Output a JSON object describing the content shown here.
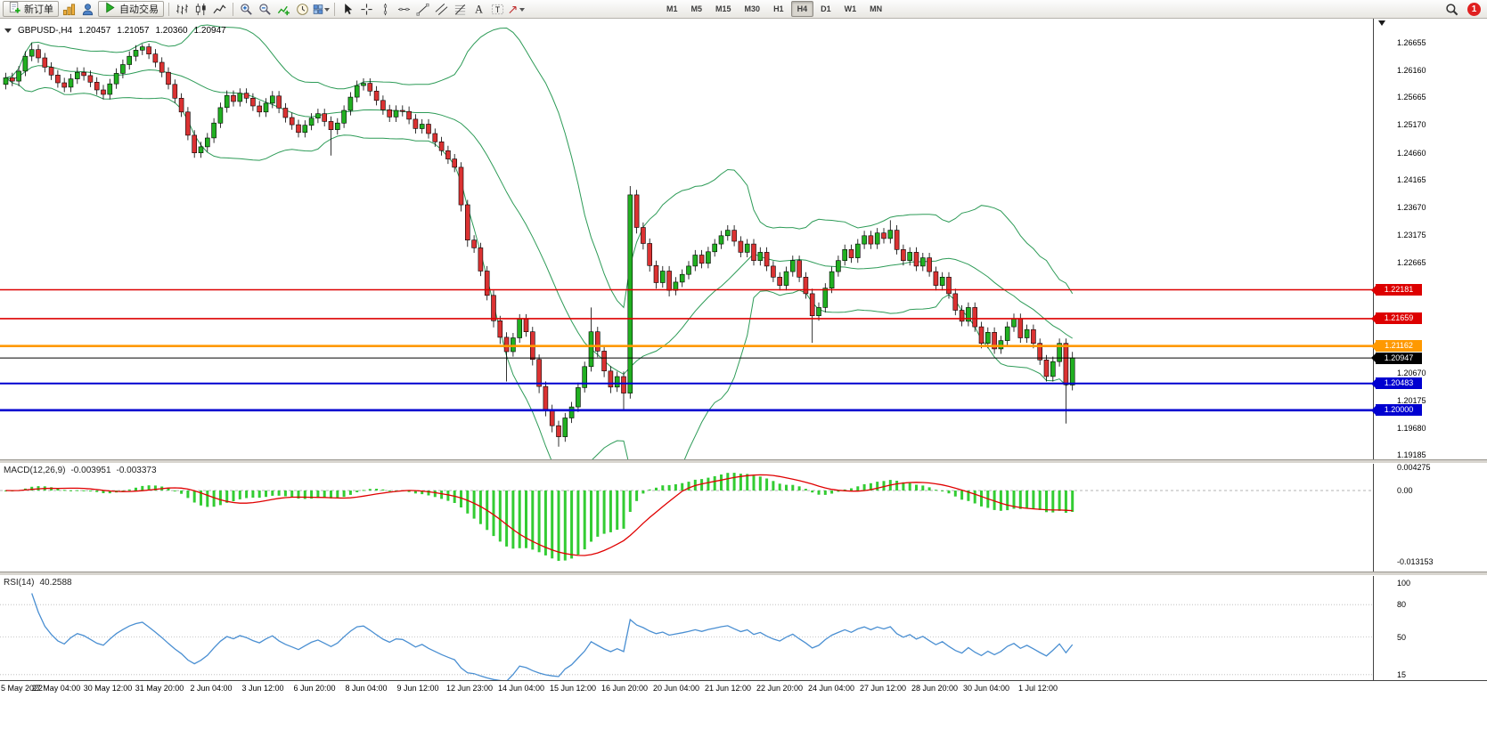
{
  "toolbar": {
    "new_order_label": "新订单",
    "autotrade_label": "自动交易",
    "timeframes": [
      "M1",
      "M5",
      "M15",
      "M30",
      "H1",
      "H4",
      "D1",
      "W1",
      "MN"
    ],
    "active_timeframe": "H4",
    "notification_count": "1",
    "icons": [
      "new-order-icon",
      "new-chart-icon",
      "profiles-icon",
      "autotrade-play-icon",
      "bar-chart-type-icon",
      "candlestick-chart-type-icon",
      "line-chart-type-icon",
      "zoom-in-icon",
      "zoom-out-icon",
      "indicators-icon",
      "periods-icon",
      "templates-icon",
      "dropdown-caret-icon",
      "cursor-icon",
      "crosshair-icon",
      "vertical-line-icon",
      "horizontal-line-icon",
      "trendline-icon",
      "channel-icon",
      "fibonacci-icon",
      "text-icon",
      "text-label-icon",
      "arrow-tool-icon",
      "search-icon",
      "notification-badge"
    ]
  },
  "quote": {
    "symbol_period": "GBPUSD-,H4",
    "open": "1.20457",
    "high": "1.21057",
    "low": "1.20360",
    "close": "1.20947"
  },
  "price_axis": {
    "ticks": [
      "1.26655",
      "1.26160",
      "1.25665",
      "1.25170",
      "1.24660",
      "1.24165",
      "1.23670",
      "1.23175",
      "1.22665",
      "1.20670",
      "1.20175",
      "1.19680",
      "1.19185"
    ],
    "badges": [
      {
        "label": "1.22181",
        "color": "#dd0000"
      },
      {
        "label": "1.21659",
        "color": "#dd0000"
      },
      {
        "label": "1.21162",
        "color": "#ff9900"
      },
      {
        "label": "1.20947",
        "color": "#000000"
      },
      {
        "label": "1.20483",
        "color": "#0000d0"
      },
      {
        "label": "1.20000",
        "color": "#0000d0"
      }
    ]
  },
  "time_axis": [
    "5 May 2022",
    "27 May 04:00",
    "30 May 12:00",
    "31 May 20:00",
    "2 Jun 04:00",
    "3 Jun 12:00",
    "6 Jun 20:00",
    "8 Jun 04:00",
    "9 Jun 12:00",
    "12 Jun 23:00",
    "14 Jun 04:00",
    "15 Jun 12:00",
    "16 Jun 20:00",
    "20 Jun 04:00",
    "21 Jun 12:00",
    "22 Jun 20:00",
    "24 Jun 04:00",
    "27 Jun 12:00",
    "28 Jun 20:00",
    "30 Jun 04:00",
    "1 Jul 12:00"
  ],
  "macd_panel": {
    "label": "MACD(12,26,9)",
    "value_main": "-0.003951",
    "value_signal": "-0.003373",
    "axis_top": "0.004275",
    "axis_zero": "0.00",
    "axis_bottom": "-0.013153"
  },
  "rsi_panel": {
    "label": "RSI(14)",
    "value": "40.2588",
    "axis": [
      "100",
      "80",
      "50",
      "15"
    ]
  },
  "chart_data": {
    "type": "candlestick",
    "symbol": "GBPUSD",
    "timeframe": "H4",
    "ylim": [
      1.1911,
      1.2709
    ],
    "colors": {
      "up": "#21b021",
      "down": "#db3232",
      "bollinger": "#2d9b57",
      "macd_hist": "#33cc33",
      "macd_signal": "#e00000",
      "rsi_line": "#4a8fd2"
    },
    "horizontal_lines": [
      {
        "price": 1.22181,
        "color": "#dd0000",
        "width": 1.6
      },
      {
        "price": 1.21659,
        "color": "#dd0000",
        "width": 1.6
      },
      {
        "price": 1.21162,
        "color": "#ff9900",
        "width": 2.6
      },
      {
        "price": 1.20947,
        "color": "#000000",
        "width": 1
      },
      {
        "price": 1.20483,
        "color": "#0000d0",
        "width": 2
      },
      {
        "price": 1.2,
        "color": "#0000d0",
        "width": 2.6
      }
    ],
    "indicators": [
      {
        "name": "Bollinger Bands",
        "period": 20,
        "deviation": 2
      },
      {
        "name": "MACD",
        "fast": 12,
        "slow": 26,
        "signal": 9,
        "current_main": -0.003951,
        "current_signal": -0.003373
      },
      {
        "name": "RSI",
        "period": 14,
        "current": 40.2588
      }
    ],
    "candles": [
      [
        1.259,
        1.2611,
        1.2581,
        1.2602
      ],
      [
        1.2602,
        1.2611,
        1.2587,
        1.2596
      ],
      [
        1.2596,
        1.2623,
        1.2587,
        1.2614
      ],
      [
        1.2614,
        1.265,
        1.2605,
        1.2641
      ],
      [
        1.2641,
        1.2665,
        1.2632,
        1.2653
      ],
      [
        1.2653,
        1.2662,
        1.2629,
        1.2638
      ],
      [
        1.2638,
        1.2647,
        1.2612,
        1.2621
      ],
      [
        1.2621,
        1.263,
        1.2598,
        1.2607
      ],
      [
        1.2607,
        1.2616,
        1.2584,
        1.2593
      ],
      [
        1.2593,
        1.2602,
        1.2576,
        1.2585
      ],
      [
        1.2585,
        1.2609,
        1.2576,
        1.26
      ],
      [
        1.26,
        1.2621,
        1.2591,
        1.2612
      ],
      [
        1.2612,
        1.2621,
        1.2597,
        1.2606
      ],
      [
        1.2606,
        1.2615,
        1.2585,
        1.2594
      ],
      [
        1.2594,
        1.2603,
        1.2571,
        1.258
      ],
      [
        1.258,
        1.2589,
        1.2563,
        1.2572
      ],
      [
        1.2572,
        1.26,
        1.2563,
        1.2591
      ],
      [
        1.2591,
        1.2619,
        1.2582,
        1.261
      ],
      [
        1.261,
        1.2635,
        1.2601,
        1.2626
      ],
      [
        1.2626,
        1.265,
        1.2617,
        1.2641
      ],
      [
        1.2641,
        1.2661,
        1.2632,
        1.2652
      ],
      [
        1.2652,
        1.2663,
        1.2643,
        1.2658
      ],
      [
        1.2658,
        1.2664,
        1.2636,
        1.2645
      ],
      [
        1.2645,
        1.2654,
        1.2621,
        1.263
      ],
      [
        1.263,
        1.2639,
        1.2603,
        1.2612
      ],
      [
        1.2612,
        1.2621,
        1.2581,
        1.259
      ],
      [
        1.259,
        1.2599,
        1.2556,
        1.2565
      ],
      [
        1.2565,
        1.2574,
        1.2531,
        1.254
      ],
      [
        1.254,
        1.2549,
        1.2489,
        1.2498
      ],
      [
        1.2498,
        1.2507,
        1.2457,
        1.2466
      ],
      [
        1.2466,
        1.2486,
        1.2457,
        1.2477
      ],
      [
        1.2477,
        1.2502,
        1.2468,
        1.2493
      ],
      [
        1.2493,
        1.2529,
        1.2484,
        1.252
      ],
      [
        1.252,
        1.2557,
        1.2511,
        1.2548
      ],
      [
        1.2548,
        1.2579,
        1.2539,
        1.257
      ],
      [
        1.257,
        1.2579,
        1.255,
        1.2559
      ],
      [
        1.2559,
        1.2583,
        1.255,
        1.2574
      ],
      [
        1.2574,
        1.2583,
        1.2556,
        1.2565
      ],
      [
        1.2565,
        1.2574,
        1.2542,
        1.2551
      ],
      [
        1.2551,
        1.256,
        1.2531,
        1.254
      ],
      [
        1.254,
        1.2565,
        1.2531,
        1.2556
      ],
      [
        1.2556,
        1.2578,
        1.2547,
        1.2569
      ],
      [
        1.2569,
        1.2578,
        1.2538,
        1.2547
      ],
      [
        1.2547,
        1.2556,
        1.2521,
        1.253
      ],
      [
        1.253,
        1.2539,
        1.2508,
        1.2517
      ],
      [
        1.2517,
        1.2526,
        1.2494,
        1.2503
      ],
      [
        1.2503,
        1.2525,
        1.2494,
        1.2516
      ],
      [
        1.2516,
        1.2538,
        1.2507,
        1.2529
      ],
      [
        1.2529,
        1.2546,
        1.252,
        1.2537
      ],
      [
        1.2537,
        1.2546,
        1.2514,
        1.2523
      ],
      [
        1.2523,
        1.2532,
        1.2461,
        1.2508
      ],
      [
        1.2508,
        1.2529,
        1.2499,
        1.252
      ],
      [
        1.252,
        1.2552,
        1.2511,
        1.2543
      ],
      [
        1.2543,
        1.2576,
        1.2534,
        1.2567
      ],
      [
        1.2567,
        1.2597,
        1.2558,
        1.2588
      ],
      [
        1.2588,
        1.2601,
        1.2579,
        1.2592
      ],
      [
        1.2592,
        1.2601,
        1.2569,
        1.2578
      ],
      [
        1.2578,
        1.2587,
        1.2552,
        1.2561
      ],
      [
        1.2561,
        1.257,
        1.2535,
        1.2544
      ],
      [
        1.2544,
        1.2553,
        1.2522,
        1.2531
      ],
      [
        1.2531,
        1.2552,
        1.2522,
        1.2543
      ],
      [
        1.2543,
        1.2552,
        1.2532,
        1.2541
      ],
      [
        1.2541,
        1.255,
        1.2518,
        1.2527
      ],
      [
        1.2527,
        1.2536,
        1.2501,
        1.251
      ],
      [
        1.251,
        1.2527,
        1.2501,
        1.2518
      ],
      [
        1.2518,
        1.2527,
        1.2492,
        1.2501
      ],
      [
        1.2501,
        1.251,
        1.2477,
        1.2486
      ],
      [
        1.2486,
        1.2495,
        1.2461,
        1.247
      ],
      [
        1.247,
        1.2479,
        1.2446,
        1.2455
      ],
      [
        1.2455,
        1.2464,
        1.2431,
        1.244
      ],
      [
        1.244,
        1.2449,
        1.236,
        1.2372
      ],
      [
        1.2372,
        1.2381,
        1.2296,
        1.2308
      ],
      [
        1.2308,
        1.2317,
        1.2285,
        1.2294
      ],
      [
        1.2294,
        1.2303,
        1.2243,
        1.2252
      ],
      [
        1.2252,
        1.2261,
        1.2199,
        1.2208
      ],
      [
        1.2208,
        1.2217,
        1.215,
        1.2162
      ],
      [
        1.2162,
        1.2171,
        1.212,
        1.2132
      ],
      [
        1.2132,
        1.2141,
        1.2052,
        1.2106
      ],
      [
        1.2106,
        1.214,
        1.2097,
        1.2131
      ],
      [
        1.2131,
        1.2174,
        1.2122,
        1.2165
      ],
      [
        1.2165,
        1.2174,
        1.2133,
        1.2142
      ],
      [
        1.2142,
        1.2151,
        1.2081,
        1.2092
      ],
      [
        1.2092,
        1.2101,
        1.2031,
        1.2043
      ],
      [
        1.2043,
        1.2052,
        1.1989,
        1.2001
      ],
      [
        1.2001,
        1.201,
        1.196,
        1.1972
      ],
      [
        1.1972,
        1.1981,
        1.1934,
        1.1952
      ],
      [
        1.1952,
        1.1995,
        1.1943,
        1.1986
      ],
      [
        1.1986,
        1.2015,
        1.1977,
        1.2006
      ],
      [
        1.2006,
        1.205,
        1.1997,
        1.2041
      ],
      [
        1.2041,
        1.2088,
        1.2032,
        1.2079
      ],
      [
        1.2079,
        1.2186,
        1.207,
        1.2142
      ],
      [
        1.2142,
        1.2151,
        1.2096,
        1.2107
      ],
      [
        1.2107,
        1.2116,
        1.206,
        1.2071
      ],
      [
        1.2071,
        1.208,
        1.2031,
        1.2042
      ],
      [
        1.2042,
        1.207,
        1.2033,
        1.2061
      ],
      [
        1.2061,
        1.207,
        1.2001,
        1.2031
      ],
      [
        1.2031,
        1.2406,
        1.2021,
        1.239
      ],
      [
        1.239,
        1.2399,
        1.232,
        1.2331
      ],
      [
        1.2331,
        1.234,
        1.2291,
        1.2302
      ],
      [
        1.2302,
        1.2311,
        1.2251,
        1.2262
      ],
      [
        1.2262,
        1.2271,
        1.222,
        1.2231
      ],
      [
        1.2231,
        1.2261,
        1.2222,
        1.2252
      ],
      [
        1.2252,
        1.2261,
        1.2206,
        1.2217
      ],
      [
        1.2217,
        1.2241,
        1.2208,
        1.2232
      ],
      [
        1.2232,
        1.2255,
        1.2223,
        1.2246
      ],
      [
        1.2246,
        1.227,
        1.2237,
        1.2261
      ],
      [
        1.2261,
        1.229,
        1.2252,
        1.2281
      ],
      [
        1.2281,
        1.229,
        1.2257,
        1.2266
      ],
      [
        1.2266,
        1.2296,
        1.2257,
        1.2287
      ],
      [
        1.2287,
        1.231,
        1.2278,
        1.2301
      ],
      [
        1.2301,
        1.2325,
        1.2292,
        1.2316
      ],
      [
        1.2316,
        1.2335,
        1.2307,
        1.2326
      ],
      [
        1.2326,
        1.2335,
        1.2297,
        1.2306
      ],
      [
        1.2306,
        1.2315,
        1.2277,
        1.2286
      ],
      [
        1.2286,
        1.231,
        1.2277,
        1.2301
      ],
      [
        1.2301,
        1.231,
        1.2262,
        1.2271
      ],
      [
        1.2271,
        1.2295,
        1.2262,
        1.2286
      ],
      [
        1.2286,
        1.2295,
        1.2252,
        1.2261
      ],
      [
        1.2261,
        1.227,
        1.2232,
        1.2241
      ],
      [
        1.2241,
        1.225,
        1.2217,
        1.2226
      ],
      [
        1.2226,
        1.226,
        1.2217,
        1.2251
      ],
      [
        1.2251,
        1.228,
        1.2242,
        1.2271
      ],
      [
        1.2271,
        1.228,
        1.2232,
        1.2241
      ],
      [
        1.2241,
        1.225,
        1.2202,
        1.2211
      ],
      [
        1.2211,
        1.222,
        1.2122,
        1.2171
      ],
      [
        1.2171,
        1.2195,
        1.2162,
        1.2186
      ],
      [
        1.2186,
        1.223,
        1.2177,
        1.2221
      ],
      [
        1.2221,
        1.226,
        1.2212,
        1.2251
      ],
      [
        1.2251,
        1.228,
        1.2242,
        1.2271
      ],
      [
        1.2271,
        1.23,
        1.2262,
        1.2291
      ],
      [
        1.2291,
        1.23,
        1.2267,
        1.2276
      ],
      [
        1.2276,
        1.231,
        1.2267,
        1.2301
      ],
      [
        1.2301,
        1.2325,
        1.2292,
        1.2316
      ],
      [
        1.2316,
        1.2325,
        1.2292,
        1.2301
      ],
      [
        1.2301,
        1.233,
        1.2292,
        1.2321
      ],
      [
        1.2321,
        1.233,
        1.2302,
        1.2311
      ],
      [
        1.2311,
        1.2344,
        1.2302,
        1.2326
      ],
      [
        1.2326,
        1.2335,
        1.2282,
        1.2291
      ],
      [
        1.2291,
        1.23,
        1.2262,
        1.2271
      ],
      [
        1.2271,
        1.2295,
        1.2262,
        1.2286
      ],
      [
        1.2286,
        1.2295,
        1.2252,
        1.2261
      ],
      [
        1.2261,
        1.2285,
        1.2252,
        1.2276
      ],
      [
        1.2276,
        1.2285,
        1.2242,
        1.2251
      ],
      [
        1.2251,
        1.226,
        1.2217,
        1.2226
      ],
      [
        1.2226,
        1.225,
        1.2217,
        1.2241
      ],
      [
        1.2241,
        1.225,
        1.2202,
        1.2211
      ],
      [
        1.2211,
        1.222,
        1.2172,
        1.2181
      ],
      [
        1.2181,
        1.219,
        1.2152,
        1.2161
      ],
      [
        1.2161,
        1.2195,
        1.2152,
        1.2186
      ],
      [
        1.2186,
        1.2195,
        1.2142,
        1.2151
      ],
      [
        1.2151,
        1.216,
        1.2112,
        1.2121
      ],
      [
        1.2121,
        1.215,
        1.2112,
        1.2141
      ],
      [
        1.2141,
        1.215,
        1.2102,
        1.2111
      ],
      [
        1.2111,
        1.2135,
        1.2102,
        1.2126
      ],
      [
        1.2126,
        1.216,
        1.2117,
        1.2151
      ],
      [
        1.2151,
        1.2175,
        1.2142,
        1.2166
      ],
      [
        1.2166,
        1.2175,
        1.2122,
        1.2131
      ],
      [
        1.2131,
        1.2155,
        1.2122,
        1.2146
      ],
      [
        1.2146,
        1.2155,
        1.2112,
        1.2121
      ],
      [
        1.2121,
        1.213,
        1.2082,
        1.2091
      ],
      [
        1.2091,
        1.21,
        1.2052,
        1.2061
      ],
      [
        1.2061,
        1.2097,
        1.2052,
        1.2088
      ],
      [
        1.2088,
        1.213,
        1.2079,
        1.2121
      ],
      [
        1.2121,
        1.213,
        1.1976,
        1.2046
      ],
      [
        1.20457,
        1.21057,
        1.2036,
        1.20947
      ]
    ]
  }
}
